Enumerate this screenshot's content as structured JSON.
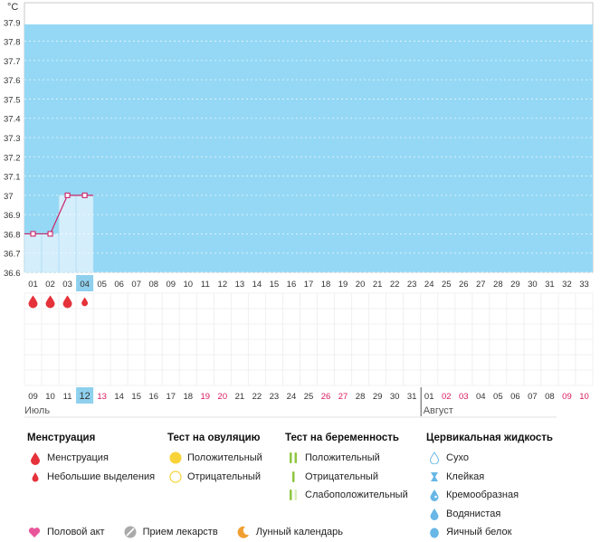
{
  "chart_data": {
    "type": "line",
    "y_unit": "°C",
    "ylim": [
      36.6,
      38.0
    ],
    "y_ticks": [
      "37.9",
      "37.8",
      "37.7",
      "37.6",
      "37.5",
      "37.4",
      "37.3",
      "37.2",
      "37.1",
      "37",
      "36.9",
      "36.8",
      "36.7",
      "36.6"
    ],
    "cycle_days": [
      "01",
      "02",
      "03",
      "04",
      "05",
      "06",
      "07",
      "08",
      "09",
      "10",
      "11",
      "12",
      "13",
      "14",
      "15",
      "16",
      "17",
      "18",
      "19",
      "20",
      "21",
      "22",
      "23",
      "24",
      "25",
      "26",
      "27",
      "28",
      "29",
      "30",
      "31",
      "32",
      "33"
    ],
    "current_cycle_day_index": 3,
    "temperature": [
      {
        "day": "01",
        "value": 36.8
      },
      {
        "day": "02",
        "value": 36.8
      },
      {
        "day": "03",
        "value": 37.0
      },
      {
        "day": "04",
        "value": 37.0
      }
    ],
    "menstruation_marks": [
      "large",
      "large",
      "large",
      "small"
    ],
    "dates": [
      {
        "label": "09",
        "weekend": false
      },
      {
        "label": "10",
        "weekend": false
      },
      {
        "label": "11",
        "weekend": false
      },
      {
        "label": "12",
        "weekend": false,
        "today": true
      },
      {
        "label": "13",
        "weekend": true
      },
      {
        "label": "14",
        "weekend": false
      },
      {
        "label": "15",
        "weekend": false
      },
      {
        "label": "16",
        "weekend": false
      },
      {
        "label": "17",
        "weekend": false
      },
      {
        "label": "18",
        "weekend": false
      },
      {
        "label": "19",
        "weekend": true
      },
      {
        "label": "20",
        "weekend": true
      },
      {
        "label": "21",
        "weekend": false
      },
      {
        "label": "22",
        "weekend": false
      },
      {
        "label": "23",
        "weekend": false
      },
      {
        "label": "24",
        "weekend": false
      },
      {
        "label": "25",
        "weekend": false
      },
      {
        "label": "26",
        "weekend": true
      },
      {
        "label": "27",
        "weekend": true
      },
      {
        "label": "28",
        "weekend": false
      },
      {
        "label": "29",
        "weekend": false
      },
      {
        "label": "30",
        "weekend": false
      },
      {
        "label": "31",
        "weekend": false
      },
      {
        "label": "01",
        "weekend": false
      },
      {
        "label": "02",
        "weekend": true
      },
      {
        "label": "03",
        "weekend": true
      },
      {
        "label": "04",
        "weekend": false
      },
      {
        "label": "05",
        "weekend": false
      },
      {
        "label": "06",
        "weekend": false
      },
      {
        "label": "07",
        "weekend": false
      },
      {
        "label": "08",
        "weekend": false
      },
      {
        "label": "09",
        "weekend": true
      },
      {
        "label": "10",
        "weekend": true
      }
    ],
    "months": [
      {
        "label": "Июль",
        "start_index": 0
      },
      {
        "label": "Август",
        "start_index": 23
      }
    ]
  },
  "colors": {
    "plot_bg": "#95d8f5",
    "temp_fill": "#d4eefc",
    "line": "#cc2266",
    "today_bg": "#8fd0ee",
    "weekend": "#d81b60",
    "blood": "#e5323a",
    "ovulation_yellow": "#f7d338",
    "pregnancy_green": "#8dc63f",
    "fluid_blue": "#68b7e6",
    "heart": "#e8559b",
    "moon": "#f0a030"
  },
  "legend": {
    "menstruation": {
      "title": "Менструация",
      "items": [
        "Менструация",
        "Небольшие выделения"
      ]
    },
    "ovulation": {
      "title": "Тест на овуляцию",
      "items": [
        "Положительный",
        "Отрицательный"
      ]
    },
    "pregnancy": {
      "title": "Тест на беременность",
      "items": [
        "Положительный",
        "Отрицательный",
        "Слабоположительный"
      ]
    },
    "fluid": {
      "title": "Цервикальная жидкость",
      "items": [
        "Сухо",
        "Клейкая",
        "Кремообразная",
        "Водянистая",
        "Яичный белок"
      ]
    }
  },
  "bottom": {
    "intercourse": "Половой акт",
    "medication": "Прием лекарств",
    "lunar": "Лунный календарь"
  }
}
